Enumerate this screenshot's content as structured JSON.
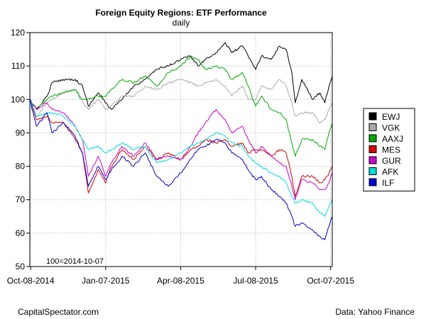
{
  "chart_data": {
    "type": "line",
    "title": "Foreign Equity Regions: ETF Performance",
    "subtitle": "daily",
    "xlabel": "",
    "ylabel": "",
    "annotation": "100=2014-10-07",
    "source_left": "CapitalSpectator.com",
    "source_right": "Data: Yahoo Finance",
    "x_range": [
      "2014-10-07",
      "2015-10-09"
    ],
    "ylim": [
      50,
      120
    ],
    "y_ticks": [
      50,
      60,
      70,
      80,
      90,
      100,
      110,
      120
    ],
    "x_ticks": [
      {
        "date": "2014-10-08",
        "label": "Oct-08-2014"
      },
      {
        "date": "2015-01-07",
        "label": "Jan-07-2015"
      },
      {
        "date": "2015-04-08",
        "label": "Apr-08-2015"
      },
      {
        "date": "2015-07-08",
        "label": "Jul-08-2015"
      },
      {
        "date": "2015-10-07",
        "label": "Oct-07-2015"
      }
    ],
    "grid": true,
    "legend_position": "right",
    "series": [
      {
        "name": "EWJ",
        "color": "#000000",
        "points": [
          [
            "2014-10-07",
            100
          ],
          [
            "2014-10-15",
            97
          ],
          [
            "2014-10-28",
            101
          ],
          [
            "2014-11-03",
            105
          ],
          [
            "2014-11-17",
            106
          ],
          [
            "2014-12-01",
            106
          ],
          [
            "2014-12-10",
            104
          ],
          [
            "2014-12-17",
            98
          ],
          [
            "2014-12-29",
            102
          ],
          [
            "2015-01-07",
            99
          ],
          [
            "2015-01-14",
            97
          ],
          [
            "2015-01-27",
            100
          ],
          [
            "2015-02-10",
            104
          ],
          [
            "2015-02-24",
            106
          ],
          [
            "2015-03-10",
            109
          ],
          [
            "2015-03-24",
            110
          ],
          [
            "2015-04-08",
            112
          ],
          [
            "2015-04-20",
            113
          ],
          [
            "2015-04-29",
            110
          ],
          [
            "2015-05-08",
            112
          ],
          [
            "2015-05-21",
            114
          ],
          [
            "2015-06-01",
            117
          ],
          [
            "2015-06-09",
            114
          ],
          [
            "2015-06-22",
            116
          ],
          [
            "2015-06-29",
            113
          ],
          [
            "2015-07-08",
            109
          ],
          [
            "2015-07-15",
            113
          ],
          [
            "2015-07-27",
            112
          ],
          [
            "2015-08-06",
            116
          ],
          [
            "2015-08-14",
            115
          ],
          [
            "2015-08-21",
            108
          ],
          [
            "2015-08-25",
            99
          ],
          [
            "2015-09-02",
            106
          ],
          [
            "2015-09-15",
            100
          ],
          [
            "2015-09-24",
            102
          ],
          [
            "2015-09-30",
            99
          ],
          [
            "2015-10-05",
            104
          ],
          [
            "2015-10-09",
            107
          ]
        ]
      },
      {
        "name": "VGK",
        "color": "#aaaaaa",
        "points": [
          [
            "2014-10-07",
            100
          ],
          [
            "2014-10-15",
            95
          ],
          [
            "2014-10-28",
            99
          ],
          [
            "2014-11-03",
            100
          ],
          [
            "2014-11-17",
            102
          ],
          [
            "2014-12-01",
            103
          ],
          [
            "2014-12-10",
            99
          ],
          [
            "2014-12-17",
            97
          ],
          [
            "2014-12-29",
            100
          ],
          [
            "2015-01-07",
            97
          ],
          [
            "2015-01-14",
            98
          ],
          [
            "2015-01-27",
            101
          ],
          [
            "2015-02-10",
            101
          ],
          [
            "2015-02-24",
            104
          ],
          [
            "2015-03-10",
            103
          ],
          [
            "2015-03-24",
            105
          ],
          [
            "2015-04-08",
            106
          ],
          [
            "2015-04-20",
            105
          ],
          [
            "2015-04-29",
            104
          ],
          [
            "2015-05-08",
            105
          ],
          [
            "2015-05-21",
            106
          ],
          [
            "2015-06-01",
            104
          ],
          [
            "2015-06-09",
            101
          ],
          [
            "2015-06-22",
            104
          ],
          [
            "2015-06-29",
            100
          ],
          [
            "2015-07-08",
            100
          ],
          [
            "2015-07-15",
            104
          ],
          [
            "2015-07-27",
            103
          ],
          [
            "2015-08-06",
            106
          ],
          [
            "2015-08-14",
            104
          ],
          [
            "2015-08-21",
            99
          ],
          [
            "2015-08-25",
            95
          ],
          [
            "2015-09-02",
            96
          ],
          [
            "2015-09-15",
            96
          ],
          [
            "2015-09-24",
            93
          ],
          [
            "2015-09-30",
            94
          ],
          [
            "2015-10-05",
            97
          ],
          [
            "2015-10-09",
            99
          ]
        ]
      },
      {
        "name": "AAXJ",
        "color": "#00aa00",
        "points": [
          [
            "2014-10-07",
            100
          ],
          [
            "2014-10-15",
            97
          ],
          [
            "2014-10-28",
            100
          ],
          [
            "2014-11-03",
            101
          ],
          [
            "2014-11-17",
            102
          ],
          [
            "2014-12-01",
            103
          ],
          [
            "2014-12-10",
            100
          ],
          [
            "2014-12-17",
            100
          ],
          [
            "2014-12-29",
            101
          ],
          [
            "2015-01-07",
            101
          ],
          [
            "2015-01-14",
            103
          ],
          [
            "2015-01-27",
            106
          ],
          [
            "2015-02-10",
            105
          ],
          [
            "2015-02-24",
            107
          ],
          [
            "2015-03-10",
            104
          ],
          [
            "2015-03-24",
            108
          ],
          [
            "2015-04-08",
            110
          ],
          [
            "2015-04-20",
            113
          ],
          [
            "2015-04-29",
            112
          ],
          [
            "2015-05-08",
            109
          ],
          [
            "2015-05-21",
            110
          ],
          [
            "2015-06-01",
            109
          ],
          [
            "2015-06-09",
            106
          ],
          [
            "2015-06-22",
            108
          ],
          [
            "2015-06-29",
            104
          ],
          [
            "2015-07-08",
            98
          ],
          [
            "2015-07-15",
            101
          ],
          [
            "2015-07-27",
            97
          ],
          [
            "2015-08-06",
            96
          ],
          [
            "2015-08-14",
            94
          ],
          [
            "2015-08-21",
            87
          ],
          [
            "2015-08-25",
            83
          ],
          [
            "2015-09-02",
            88
          ],
          [
            "2015-09-15",
            88
          ],
          [
            "2015-09-24",
            86
          ],
          [
            "2015-09-30",
            85
          ],
          [
            "2015-10-05",
            90
          ],
          [
            "2015-10-09",
            93
          ]
        ]
      },
      {
        "name": "MES",
        "color": "#dd0000",
        "points": [
          [
            "2014-10-07",
            100
          ],
          [
            "2014-10-15",
            94
          ],
          [
            "2014-10-28",
            95
          ],
          [
            "2014-11-03",
            93
          ],
          [
            "2014-11-17",
            93
          ],
          [
            "2014-12-01",
            88
          ],
          [
            "2014-12-10",
            84
          ],
          [
            "2014-12-17",
            72
          ],
          [
            "2014-12-29",
            79
          ],
          [
            "2015-01-07",
            75
          ],
          [
            "2015-01-14",
            80
          ],
          [
            "2015-01-27",
            85
          ],
          [
            "2015-02-10",
            82
          ],
          [
            "2015-02-24",
            86
          ],
          [
            "2015-03-10",
            82
          ],
          [
            "2015-03-24",
            84
          ],
          [
            "2015-04-08",
            82
          ],
          [
            "2015-04-20",
            85
          ],
          [
            "2015-04-29",
            86
          ],
          [
            "2015-05-08",
            88
          ],
          [
            "2015-05-21",
            87
          ],
          [
            "2015-06-01",
            88
          ],
          [
            "2015-06-09",
            86
          ],
          [
            "2015-06-22",
            87
          ],
          [
            "2015-06-29",
            84
          ],
          [
            "2015-07-08",
            85
          ],
          [
            "2015-07-15",
            85
          ],
          [
            "2015-07-27",
            83
          ],
          [
            "2015-08-06",
            85
          ],
          [
            "2015-08-14",
            84
          ],
          [
            "2015-08-21",
            77
          ],
          [
            "2015-08-25",
            71
          ],
          [
            "2015-09-02",
            77
          ],
          [
            "2015-09-15",
            77
          ],
          [
            "2015-09-24",
            75
          ],
          [
            "2015-09-30",
            76
          ],
          [
            "2015-10-05",
            78
          ],
          [
            "2015-10-09",
            80
          ]
        ]
      },
      {
        "name": "GUR",
        "color": "#cc00cc",
        "points": [
          [
            "2014-10-07",
            100
          ],
          [
            "2014-10-15",
            97
          ],
          [
            "2014-10-28",
            99
          ],
          [
            "2014-11-03",
            97
          ],
          [
            "2014-11-17",
            96
          ],
          [
            "2014-12-01",
            92
          ],
          [
            "2014-12-10",
            88
          ],
          [
            "2014-12-17",
            77
          ],
          [
            "2014-12-29",
            83
          ],
          [
            "2015-01-07",
            77
          ],
          [
            "2015-01-14",
            81
          ],
          [
            "2015-01-27",
            86
          ],
          [
            "2015-02-10",
            83
          ],
          [
            "2015-02-24",
            87
          ],
          [
            "2015-03-10",
            82
          ],
          [
            "2015-03-24",
            83
          ],
          [
            "2015-04-08",
            82
          ],
          [
            "2015-04-20",
            86
          ],
          [
            "2015-04-29",
            90
          ],
          [
            "2015-05-08",
            93
          ],
          [
            "2015-05-21",
            97
          ],
          [
            "2015-06-01",
            94
          ],
          [
            "2015-06-09",
            90
          ],
          [
            "2015-06-22",
            92
          ],
          [
            "2015-06-29",
            88
          ],
          [
            "2015-07-08",
            84
          ],
          [
            "2015-07-15",
            86
          ],
          [
            "2015-07-27",
            83
          ],
          [
            "2015-08-06",
            81
          ],
          [
            "2015-08-14",
            80
          ],
          [
            "2015-08-21",
            74
          ],
          [
            "2015-08-25",
            70
          ],
          [
            "2015-09-02",
            76
          ],
          [
            "2015-09-15",
            75
          ],
          [
            "2015-09-24",
            73
          ],
          [
            "2015-09-30",
            73
          ],
          [
            "2015-10-05",
            75
          ],
          [
            "2015-10-09",
            78
          ]
        ]
      },
      {
        "name": "AFK",
        "color": "#00dddd",
        "points": [
          [
            "2014-10-07",
            100
          ],
          [
            "2014-10-15",
            95
          ],
          [
            "2014-10-28",
            96
          ],
          [
            "2014-11-03",
            96
          ],
          [
            "2014-11-17",
            95
          ],
          [
            "2014-12-01",
            92
          ],
          [
            "2014-12-10",
            88
          ],
          [
            "2014-12-17",
            85
          ],
          [
            "2014-12-29",
            86
          ],
          [
            "2015-01-07",
            84
          ],
          [
            "2015-01-14",
            85
          ],
          [
            "2015-01-27",
            87
          ],
          [
            "2015-02-10",
            85
          ],
          [
            "2015-02-24",
            86
          ],
          [
            "2015-03-10",
            81
          ],
          [
            "2015-03-24",
            82
          ],
          [
            "2015-04-08",
            84
          ],
          [
            "2015-04-20",
            86
          ],
          [
            "2015-04-29",
            87
          ],
          [
            "2015-05-08",
            88
          ],
          [
            "2015-05-21",
            90
          ],
          [
            "2015-06-01",
            89
          ],
          [
            "2015-06-09",
            87
          ],
          [
            "2015-06-22",
            86
          ],
          [
            "2015-06-29",
            83
          ],
          [
            "2015-07-08",
            81
          ],
          [
            "2015-07-15",
            80
          ],
          [
            "2015-07-27",
            78
          ],
          [
            "2015-08-06",
            77
          ],
          [
            "2015-08-14",
            75
          ],
          [
            "2015-08-21",
            71
          ],
          [
            "2015-08-25",
            69
          ],
          [
            "2015-09-02",
            70
          ],
          [
            "2015-09-15",
            69
          ],
          [
            "2015-09-24",
            66
          ],
          [
            "2015-09-30",
            65
          ],
          [
            "2015-10-05",
            68
          ],
          [
            "2015-10-09",
            70
          ]
        ]
      },
      {
        "name": "ILF",
        "color": "#0000dd",
        "points": [
          [
            "2014-10-07",
            100
          ],
          [
            "2014-10-15",
            92
          ],
          [
            "2014-10-28",
            96
          ],
          [
            "2014-11-03",
            90
          ],
          [
            "2014-11-17",
            93
          ],
          [
            "2014-12-01",
            89
          ],
          [
            "2014-12-10",
            84
          ],
          [
            "2014-12-17",
            74
          ],
          [
            "2014-12-29",
            80
          ],
          [
            "2015-01-07",
            76
          ],
          [
            "2015-01-14",
            79
          ],
          [
            "2015-01-27",
            83
          ],
          [
            "2015-02-10",
            80
          ],
          [
            "2015-02-24",
            84
          ],
          [
            "2015-03-10",
            77
          ],
          [
            "2015-03-24",
            74
          ],
          [
            "2015-04-08",
            78
          ],
          [
            "2015-04-20",
            82
          ],
          [
            "2015-04-29",
            85
          ],
          [
            "2015-05-08",
            86
          ],
          [
            "2015-05-21",
            88
          ],
          [
            "2015-06-01",
            87
          ],
          [
            "2015-06-09",
            84
          ],
          [
            "2015-06-22",
            82
          ],
          [
            "2015-06-29",
            79
          ],
          [
            "2015-07-08",
            76
          ],
          [
            "2015-07-15",
            77
          ],
          [
            "2015-07-27",
            73
          ],
          [
            "2015-08-06",
            71
          ],
          [
            "2015-08-14",
            69
          ],
          [
            "2015-08-21",
            65
          ],
          [
            "2015-08-25",
            62
          ],
          [
            "2015-09-02",
            63
          ],
          [
            "2015-09-15",
            61
          ],
          [
            "2015-09-24",
            59
          ],
          [
            "2015-09-30",
            58
          ],
          [
            "2015-10-05",
            62
          ],
          [
            "2015-10-09",
            65
          ]
        ]
      }
    ]
  }
}
